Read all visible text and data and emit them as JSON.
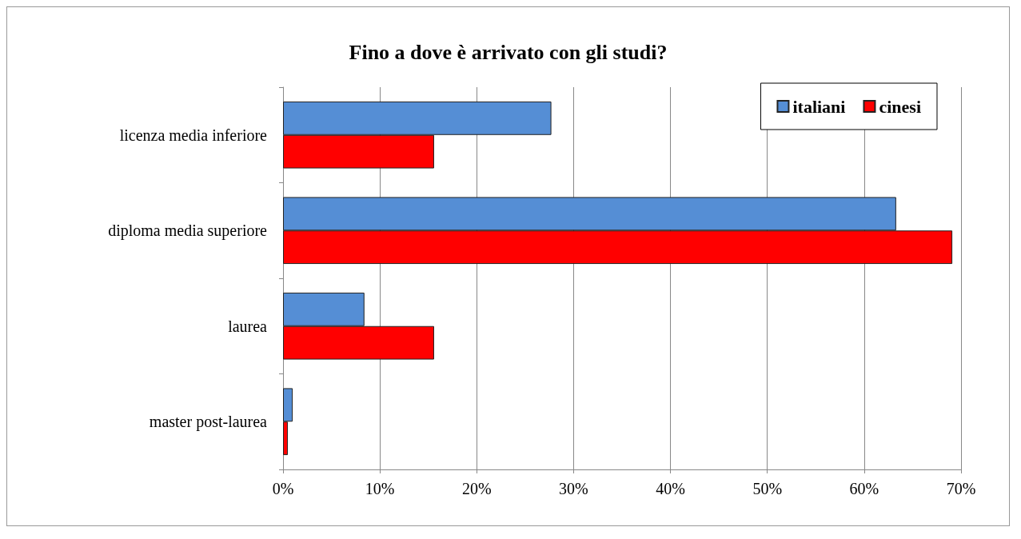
{
  "chart_data": {
    "type": "bar",
    "orientation": "horizontal",
    "title": "Fino a dove è arrivato con gli studi?",
    "categories": [
      "licenza media inferiore",
      "diploma media superiore",
      "laurea",
      "master post-laurea"
    ],
    "series": [
      {
        "name": "italiani",
        "color": "#558ed5",
        "values": [
          27.7,
          63.3,
          8.4,
          1
        ]
      },
      {
        "name": "cinesi",
        "color": "#ff0000",
        "values": [
          15.6,
          69.1,
          15.6,
          0.5
        ]
      }
    ],
    "xlim": [
      0,
      70
    ],
    "xticks": [
      {
        "value": 0,
        "label": "0%"
      },
      {
        "value": 10,
        "label": "10%"
      },
      {
        "value": 20,
        "label": "20%"
      },
      {
        "value": 30,
        "label": "30%"
      },
      {
        "value": 40,
        "label": "40%"
      },
      {
        "value": 50,
        "label": "50%"
      },
      {
        "value": 60,
        "label": "60%"
      },
      {
        "value": 70,
        "label": "70%"
      }
    ],
    "grid": "x",
    "legend": "top right"
  }
}
